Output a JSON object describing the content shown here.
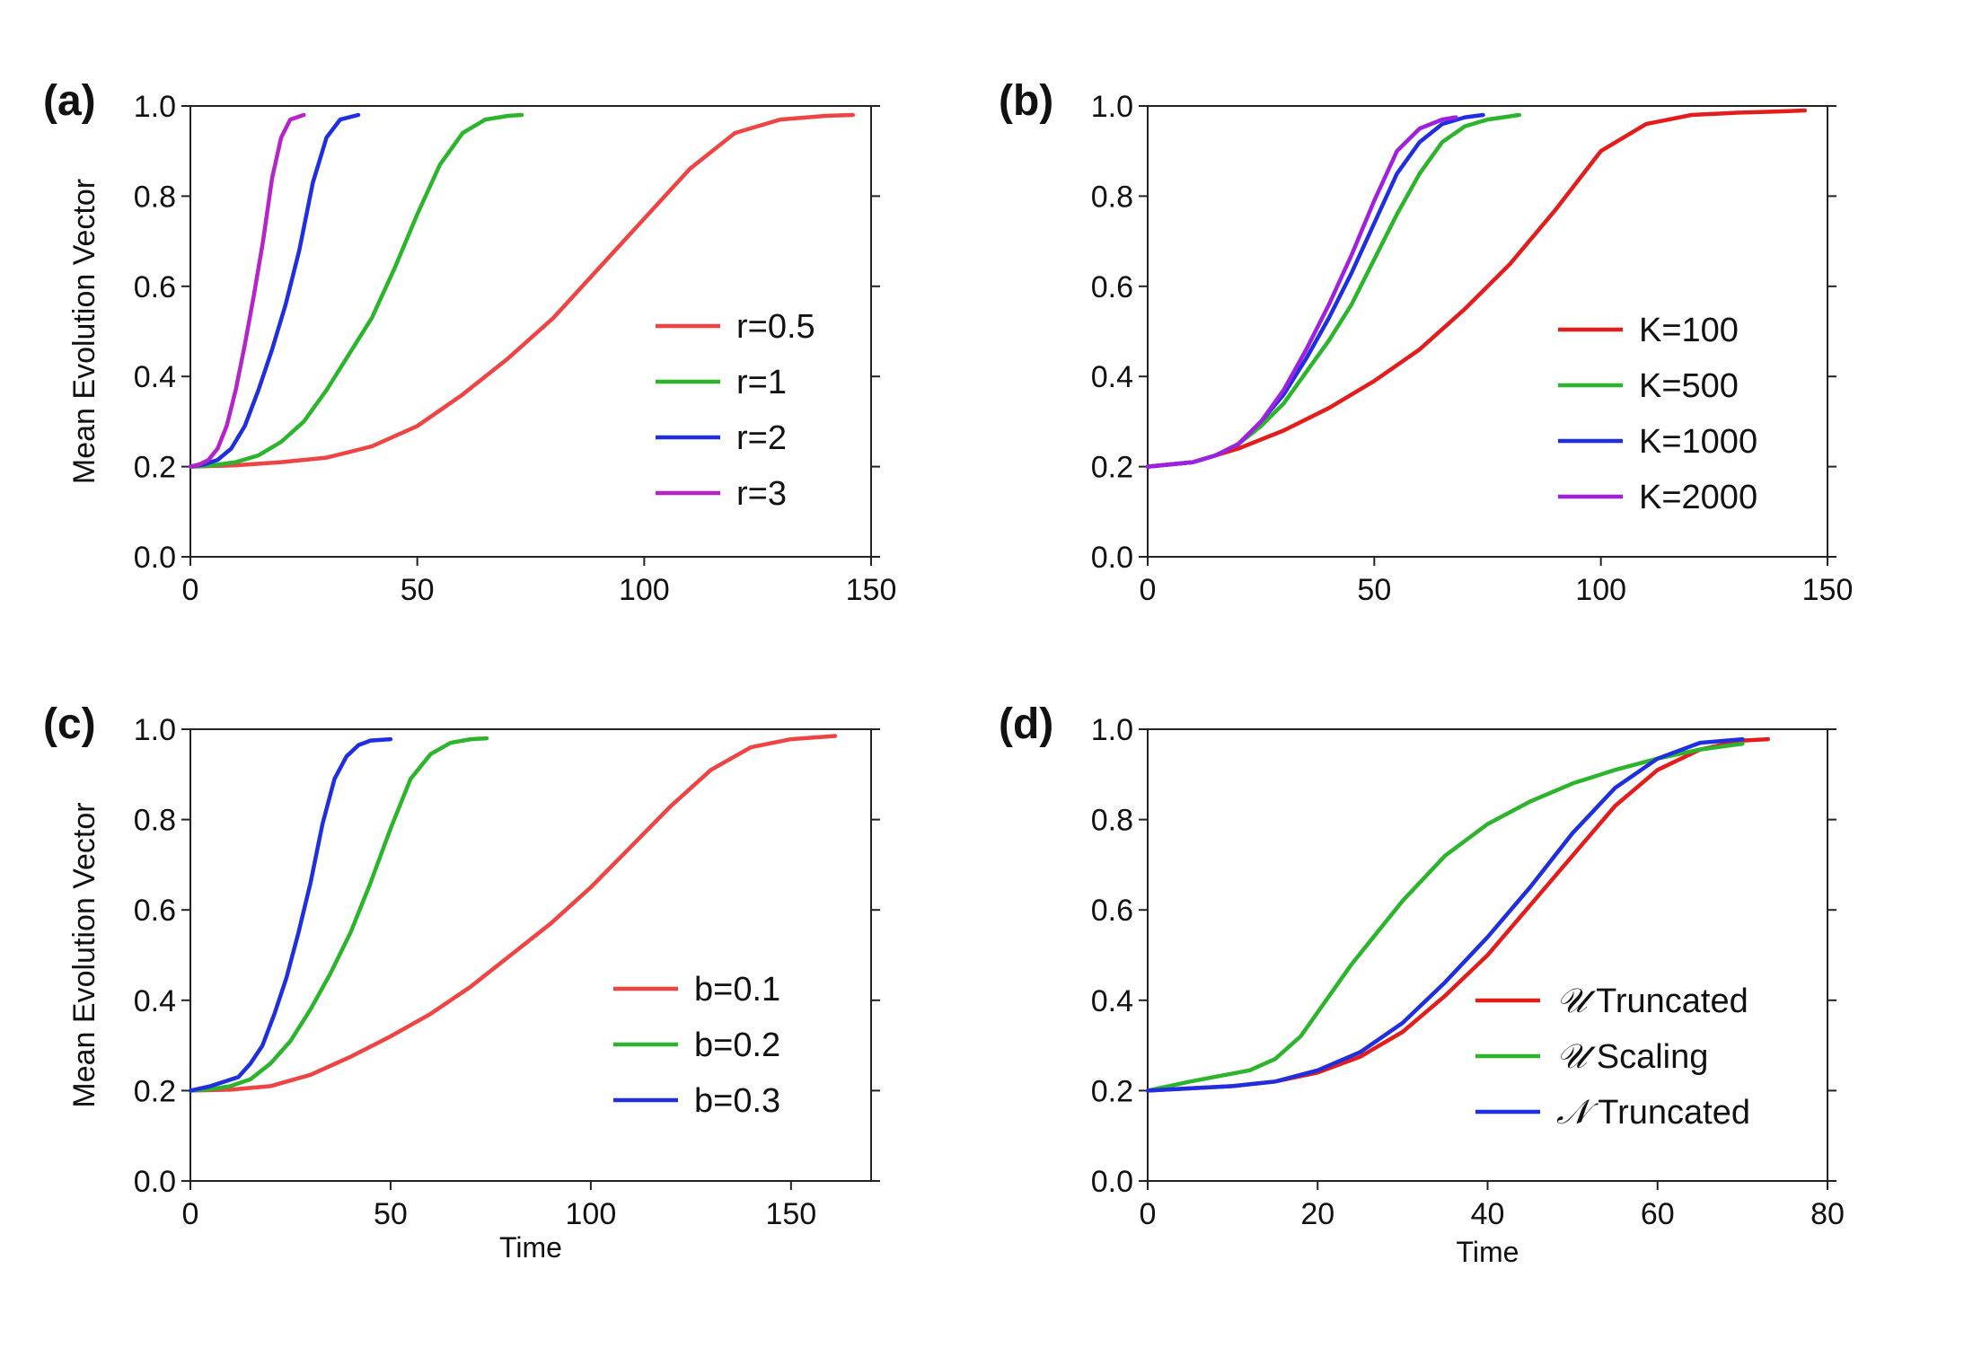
{
  "chart_data": [
    {
      "panel_label": "(a)",
      "type": "line",
      "xlabel": "",
      "ylabel": "Mean Evolution Vector",
      "xlim": [
        0,
        150
      ],
      "ylim": [
        0,
        1
      ],
      "xticks": [
        "0",
        "50",
        "100",
        "150"
      ],
      "yticks": [
        "0.0",
        "0.2",
        "0.4",
        "0.6",
        "0.8",
        "1.0"
      ],
      "legend_position": "right",
      "series": [
        {
          "name": "r=0.5",
          "color": "#ef4444",
          "x": [
            0,
            10,
            20,
            30,
            40,
            50,
            60,
            70,
            80,
            90,
            100,
            110,
            120,
            130,
            140,
            146
          ],
          "y": [
            0.2,
            0.203,
            0.21,
            0.22,
            0.245,
            0.29,
            0.36,
            0.44,
            0.53,
            0.64,
            0.75,
            0.86,
            0.94,
            0.97,
            0.978,
            0.98
          ]
        },
        {
          "name": "r=1",
          "color": "#2cb52c",
          "x": [
            0,
            5,
            10,
            15,
            20,
            25,
            30,
            35,
            40,
            45,
            50,
            55,
            60,
            65,
            70,
            73
          ],
          "y": [
            0.2,
            0.203,
            0.21,
            0.225,
            0.255,
            0.3,
            0.37,
            0.45,
            0.53,
            0.64,
            0.76,
            0.87,
            0.94,
            0.97,
            0.978,
            0.98
          ]
        },
        {
          "name": "r=2",
          "color": "#1f2fe0",
          "x": [
            0,
            3,
            6,
            9,
            12,
            15,
            18,
            21,
            24,
            27,
            30,
            33,
            37
          ],
          "y": [
            0.2,
            0.205,
            0.215,
            0.24,
            0.29,
            0.37,
            0.46,
            0.56,
            0.68,
            0.83,
            0.93,
            0.97,
            0.98
          ]
        },
        {
          "name": "r=3",
          "color": "#b524c8",
          "x": [
            0,
            2,
            4,
            6,
            8,
            10,
            12,
            14,
            16,
            18,
            20,
            22,
            25
          ],
          "y": [
            0.2,
            0.205,
            0.215,
            0.24,
            0.29,
            0.37,
            0.47,
            0.58,
            0.7,
            0.84,
            0.93,
            0.97,
            0.98
          ]
        }
      ]
    },
    {
      "panel_label": "(b)",
      "type": "line",
      "xlabel": "",
      "ylabel": "",
      "xlim": [
        0,
        150
      ],
      "ylim": [
        0,
        1
      ],
      "xticks": [
        "0",
        "50",
        "100",
        "150"
      ],
      "yticks": [
        "0.0",
        "0.2",
        "0.4",
        "0.6",
        "0.8",
        "1.0"
      ],
      "legend_position": "right",
      "series": [
        {
          "name": "K=100",
          "color": "#e31c1c",
          "x": [
            0,
            10,
            20,
            30,
            40,
            50,
            60,
            70,
            80,
            90,
            100,
            110,
            120,
            130,
            140,
            145
          ],
          "y": [
            0.2,
            0.21,
            0.24,
            0.28,
            0.33,
            0.39,
            0.46,
            0.55,
            0.65,
            0.77,
            0.9,
            0.96,
            0.98,
            0.985,
            0.988,
            0.99
          ]
        },
        {
          "name": "K=500",
          "color": "#2cb52c",
          "x": [
            0,
            10,
            15,
            20,
            25,
            30,
            35,
            40,
            45,
            50,
            55,
            60,
            65,
            70,
            75,
            82
          ],
          "y": [
            0.2,
            0.21,
            0.225,
            0.25,
            0.29,
            0.34,
            0.41,
            0.48,
            0.56,
            0.66,
            0.76,
            0.85,
            0.92,
            0.955,
            0.97,
            0.98
          ]
        },
        {
          "name": "K=1000",
          "color": "#1f2fe0",
          "x": [
            0,
            10,
            15,
            20,
            25,
            30,
            35,
            40,
            45,
            50,
            55,
            60,
            65,
            70,
            74
          ],
          "y": [
            0.2,
            0.21,
            0.225,
            0.25,
            0.3,
            0.36,
            0.44,
            0.53,
            0.63,
            0.74,
            0.85,
            0.92,
            0.96,
            0.975,
            0.98
          ]
        },
        {
          "name": "K=2000",
          "color": "#a020e0",
          "x": [
            0,
            10,
            15,
            20,
            25,
            30,
            35,
            40,
            45,
            50,
            55,
            60,
            65,
            68
          ],
          "y": [
            0.2,
            0.21,
            0.225,
            0.25,
            0.3,
            0.37,
            0.46,
            0.56,
            0.67,
            0.79,
            0.9,
            0.95,
            0.97,
            0.975
          ]
        }
      ]
    },
    {
      "panel_label": "(c)",
      "type": "line",
      "xlabel": "Time",
      "ylabel": "Mean Evolution Vector",
      "xlim": [
        0,
        170
      ],
      "ylim": [
        0,
        1
      ],
      "xticks": [
        "0",
        "50",
        "100",
        "150"
      ],
      "yticks": [
        "0.0",
        "0.2",
        "0.4",
        "0.6",
        "0.8",
        "1.0"
      ],
      "legend_position": "right",
      "series": [
        {
          "name": "b=0.1",
          "color": "#ef4444",
          "x": [
            0,
            10,
            20,
            30,
            40,
            50,
            60,
            70,
            80,
            90,
            100,
            110,
            120,
            130,
            140,
            150,
            161
          ],
          "y": [
            0.2,
            0.202,
            0.21,
            0.235,
            0.275,
            0.32,
            0.37,
            0.43,
            0.5,
            0.57,
            0.65,
            0.74,
            0.83,
            0.91,
            0.96,
            0.978,
            0.985
          ]
        },
        {
          "name": "b=0.2",
          "color": "#2cb52c",
          "x": [
            0,
            5,
            10,
            15,
            20,
            25,
            30,
            35,
            40,
            45,
            50,
            55,
            60,
            65,
            70,
            74
          ],
          "y": [
            0.2,
            0.203,
            0.21,
            0.225,
            0.26,
            0.31,
            0.38,
            0.46,
            0.55,
            0.66,
            0.78,
            0.89,
            0.945,
            0.97,
            0.978,
            0.98
          ]
        },
        {
          "name": "b=0.3",
          "color": "#1f2fe0",
          "x": [
            0,
            5,
            12,
            15,
            18,
            21,
            24,
            27,
            30,
            33,
            36,
            39,
            42,
            45,
            50
          ],
          "y": [
            0.2,
            0.21,
            0.23,
            0.26,
            0.3,
            0.37,
            0.45,
            0.55,
            0.66,
            0.79,
            0.89,
            0.94,
            0.965,
            0.975,
            0.978
          ]
        }
      ]
    },
    {
      "panel_label": "(d)",
      "type": "line",
      "xlabel": "Time",
      "ylabel": "",
      "xlim": [
        0,
        80
      ],
      "ylim": [
        0,
        1
      ],
      "xticks": [
        "0",
        "20",
        "40",
        "60",
        "80"
      ],
      "yticks": [
        "0.0",
        "0.2",
        "0.4",
        "0.6",
        "0.8",
        "1.0"
      ],
      "legend_position": "bottom-right",
      "series": [
        {
          "name_symbol": "𝒰",
          "name_text": "Truncated",
          "color": "#e31c1c",
          "x": [
            0,
            10,
            15,
            20,
            25,
            30,
            35,
            40,
            45,
            50,
            55,
            60,
            65,
            70,
            73
          ],
          "y": [
            0.2,
            0.21,
            0.22,
            0.24,
            0.275,
            0.33,
            0.41,
            0.5,
            0.61,
            0.72,
            0.83,
            0.91,
            0.955,
            0.975,
            0.978
          ]
        },
        {
          "name_symbol": "𝒰",
          "name_text": "Scaling",
          "color": "#2cb52c",
          "x": [
            0,
            5,
            12,
            15,
            18,
            21,
            24,
            27,
            30,
            35,
            40,
            45,
            50,
            55,
            60,
            65,
            70
          ],
          "y": [
            0.2,
            0.22,
            0.245,
            0.27,
            0.32,
            0.4,
            0.48,
            0.55,
            0.62,
            0.72,
            0.79,
            0.84,
            0.88,
            0.91,
            0.935,
            0.955,
            0.968
          ]
        },
        {
          "name_symbol": "𝒩",
          "name_text": "Truncated",
          "color": "#1f2fe0",
          "x": [
            0,
            10,
            15,
            20,
            25,
            30,
            35,
            40,
            45,
            50,
            55,
            60,
            65,
            70
          ],
          "y": [
            0.2,
            0.21,
            0.22,
            0.245,
            0.285,
            0.35,
            0.44,
            0.54,
            0.65,
            0.77,
            0.87,
            0.935,
            0.97,
            0.978
          ]
        }
      ]
    }
  ]
}
